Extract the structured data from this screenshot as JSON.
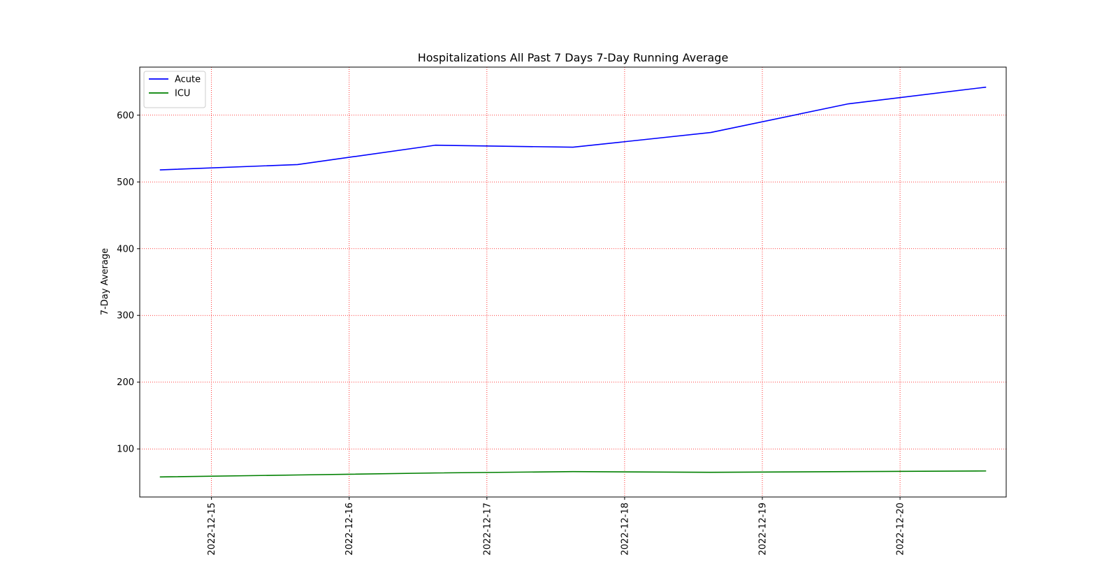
{
  "colors": {
    "background": "#ffffff",
    "grid": "#ff0000",
    "axis": "#000000"
  },
  "chart_data": {
    "type": "line",
    "title": "Hospitalizations All Past 7 Days 7-Day Running Average",
    "xlabel": "",
    "ylabel": "7-Day Average",
    "x_axis_type": "date",
    "x": [
      "2022-12-14 15:00",
      "2022-12-15 15:00",
      "2022-12-16 15:00",
      "2022-12-17 15:00",
      "2022-12-18 15:00",
      "2022-12-19 15:00",
      "2022-12-20 15:00"
    ],
    "xlim": [
      "2022-12-14 11:30",
      "2022-12-20 18:30"
    ],
    "ylim": [
      28,
      672
    ],
    "x_ticks": [
      "2022-12-15",
      "2022-12-16",
      "2022-12-17",
      "2022-12-18",
      "2022-12-19",
      "2022-12-20"
    ],
    "y_ticks": [
      100,
      200,
      300,
      400,
      500,
      600
    ],
    "x_tick_rotation": "vertical",
    "grid": true,
    "grid_style": "dotted",
    "legend_position": "top-left",
    "series": [
      {
        "name": "Acute",
        "color": "#0000ff",
        "values": [
          518,
          526,
          555,
          552,
          574,
          617,
          642
        ]
      },
      {
        "name": "ICU",
        "color": "#008000",
        "values": [
          58,
          61,
          64,
          66,
          65,
          66,
          67
        ]
      }
    ]
  }
}
